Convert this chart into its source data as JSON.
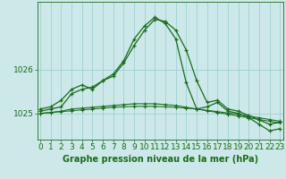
{
  "title": "Graphe pression niveau de la mer (hPa)",
  "bg_color": "#cce8e8",
  "plot_bg_color": "#cce8e8",
  "grid_color": "#99cccc",
  "line_color": "#1a6b1a",
  "hours": [
    0,
    1,
    2,
    3,
    4,
    5,
    6,
    7,
    8,
    9,
    10,
    11,
    12,
    13,
    14,
    15,
    16,
    17,
    18,
    19,
    20,
    21,
    22,
    23
  ],
  "series1": [
    1025.1,
    1025.15,
    1025.3,
    1025.55,
    1025.65,
    1025.55,
    1025.75,
    1025.85,
    1026.15,
    1026.55,
    1026.9,
    1027.15,
    1027.1,
    1026.9,
    1026.45,
    1025.75,
    1025.25,
    1025.3,
    1025.1,
    1025.05,
    1024.95,
    1024.85,
    1024.75,
    1024.8
  ],
  "series2": [
    1025.05,
    1025.1,
    1025.15,
    1025.45,
    1025.55,
    1025.6,
    1025.75,
    1025.9,
    1026.2,
    1026.7,
    1027.0,
    1027.2,
    1027.05,
    1026.7,
    1025.7,
    1025.1,
    1025.15,
    1025.25,
    1025.05,
    1025.0,
    1024.9,
    1024.75,
    1024.6,
    1024.65
  ],
  "series3": [
    1025.0,
    1025.02,
    1025.05,
    1025.1,
    1025.12,
    1025.14,
    1025.16,
    1025.18,
    1025.2,
    1025.22,
    1025.22,
    1025.22,
    1025.2,
    1025.18,
    1025.14,
    1025.1,
    1025.06,
    1025.02,
    1024.98,
    1024.94,
    1024.9,
    1024.86,
    1024.82,
    1024.78
  ],
  "series4": [
    1025.0,
    1025.02,
    1025.04,
    1025.06,
    1025.08,
    1025.1,
    1025.12,
    1025.14,
    1025.15,
    1025.16,
    1025.16,
    1025.16,
    1025.15,
    1025.14,
    1025.12,
    1025.1,
    1025.07,
    1025.04,
    1025.01,
    1024.98,
    1024.94,
    1024.9,
    1024.86,
    1024.82
  ],
  "ylim": [
    1024.4,
    1027.55
  ],
  "yticks": [
    1025,
    1026
  ],
  "tick_fontsize": 6.5,
  "title_fontsize": 7.0
}
